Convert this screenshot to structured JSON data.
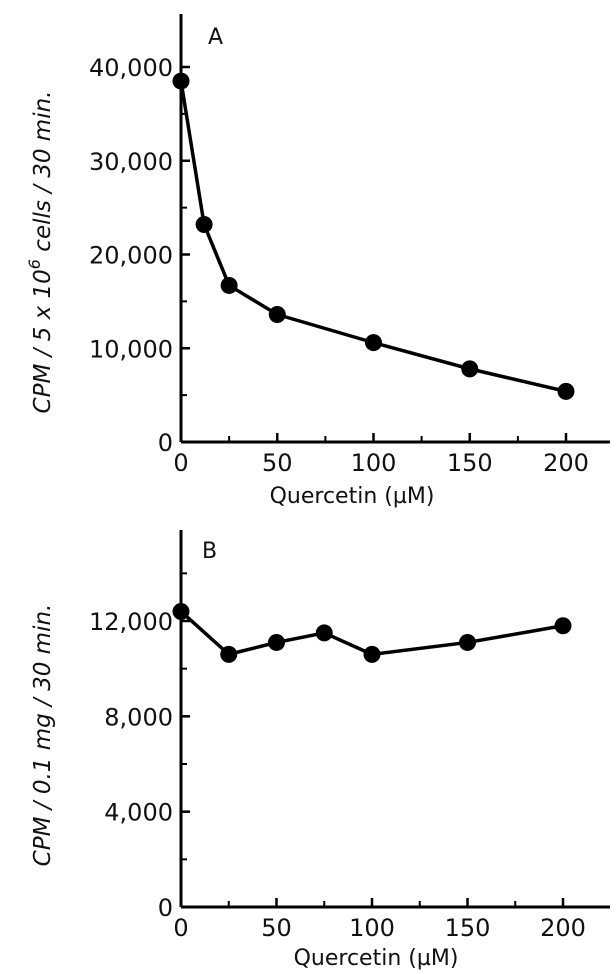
{
  "chart_data": [
    {
      "type": "line",
      "panel_label": "A",
      "xlabel": "Quercetin (µM)",
      "ylabel_parts": [
        "CPM / 5 x 10",
        "6",
        " cells / 30 min."
      ],
      "xlim": [
        0,
        210
      ],
      "ylim": [
        0,
        44000
      ],
      "xticks": [
        0,
        50,
        100,
        150,
        200
      ],
      "xtick_labels": [
        "0",
        "50",
        "100",
        "150",
        "200"
      ],
      "yticks": [
        0,
        10000,
        20000,
        30000,
        40000
      ],
      "ytick_labels": [
        "0",
        "10,000",
        "20,000",
        "30,000",
        "40,000"
      ],
      "series": [
        {
          "x": [
            0,
            12,
            25,
            50,
            100,
            150,
            200
          ],
          "y": [
            38500,
            23200,
            16700,
            13600,
            10600,
            7800,
            5400
          ]
        }
      ],
      "marker": "filled-circle",
      "line_color": "#000000"
    },
    {
      "type": "line",
      "panel_label": "B",
      "xlabel": "Quercetin (µM)",
      "ylabel_parts": [
        "CPM / 0.1 mg / 30 min."
      ],
      "xlim": [
        0,
        220
      ],
      "ylim": [
        0,
        15200
      ],
      "xticks": [
        0,
        50,
        100,
        150,
        200
      ],
      "xtick_labels": [
        "0",
        "50",
        "100",
        "150",
        "200"
      ],
      "yticks": [
        0,
        4000,
        8000,
        12000
      ],
      "ytick_labels": [
        "0",
        "4,000",
        "8,000",
        "12,000"
      ],
      "series": [
        {
          "x": [
            0,
            25,
            50,
            75,
            100,
            150,
            200
          ],
          "y": [
            12400,
            10600,
            11100,
            11500,
            10600,
            11100,
            11800
          ]
        }
      ],
      "marker": "filled-circle",
      "line_color": "#000000"
    }
  ]
}
